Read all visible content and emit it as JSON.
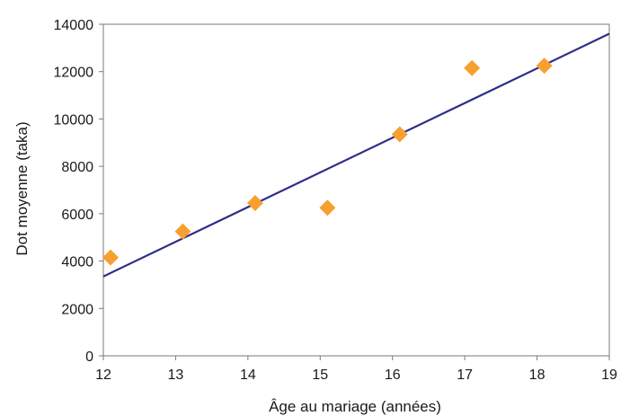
{
  "chart_data": {
    "type": "scatter",
    "title": "",
    "xlabel": "Âge au mariage (années)",
    "ylabel": "Dot moyenne (taka)",
    "xlim": [
      12,
      19
    ],
    "ylim": [
      0,
      14000
    ],
    "x_ticks": [
      "12",
      "13",
      "14",
      "15",
      "16",
      "17",
      "18",
      "19"
    ],
    "y_ticks": [
      "0",
      "2000",
      "4000",
      "6000",
      "8000",
      "10000",
      "12000",
      "14000"
    ],
    "grid": false,
    "legend": "none",
    "series": [
      {
        "type": "scatter",
        "marker": "diamond",
        "color": "#f7a030",
        "x": [
          12.1,
          13.1,
          14.1,
          15.1,
          16.1,
          17.1,
          18.1
        ],
        "y": [
          4150,
          5250,
          6450,
          6250,
          9350,
          12150,
          12250
        ]
      },
      {
        "type": "line",
        "color": "#2e2e8a",
        "x": [
          12,
          19
        ],
        "y": [
          3350,
          13600
        ]
      }
    ]
  }
}
